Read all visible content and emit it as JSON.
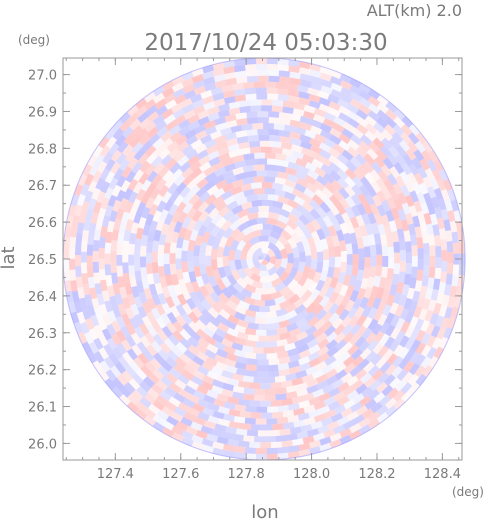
{
  "chart_data": {
    "type": "heatmap",
    "title": "2017/10/24 05:03:30",
    "altitude_label": "ALT(km) 2.0",
    "xlabel": "lon",
    "ylabel": "lat",
    "x_unit": "(deg)",
    "y_unit": "(deg)",
    "xlim": [
      127.24,
      128.46
    ],
    "ylim": [
      25.955,
      27.045
    ],
    "x_ticks": [
      "127.4",
      "127.6",
      "127.8",
      "128.0",
      "128.2",
      "128.4"
    ],
    "y_ticks": [
      "26.0",
      "26.1",
      "26.2",
      "26.3",
      "26.4",
      "26.5",
      "26.6",
      "26.7",
      "26.8",
      "26.9",
      "27.0"
    ],
    "center": {
      "lon": 127.855,
      "lat": 26.5
    },
    "radius_deg": 0.545,
    "colors": {
      "positive": "#ff7070",
      "negative": "#6a6aff",
      "frame": "#9a9a9a",
      "text": "#7a7a7a"
    }
  }
}
